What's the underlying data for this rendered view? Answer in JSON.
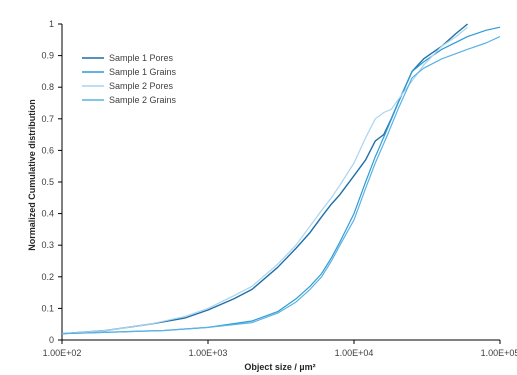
{
  "chart_data": {
    "type": "line",
    "xlabel": "Object size / µm²",
    "ylabel": "Normalized Cumulative distribution",
    "x_scale": "log",
    "xlim": [
      100,
      100000
    ],
    "ylim": [
      0,
      1
    ],
    "x_ticks": [
      100,
      1000,
      10000,
      100000
    ],
    "x_tick_labels": [
      "1.00E+02",
      "1.00E+03",
      "1.00E+04",
      "1.00E+05"
    ],
    "y_ticks": [
      0,
      0.1,
      0.2,
      0.3,
      0.4,
      0.5,
      0.6,
      0.7,
      0.8,
      0.9,
      1
    ],
    "y_tick_labels": [
      "0",
      "0.1",
      "0.2",
      "0.3",
      "0.4",
      "0.5",
      "0.6",
      "0.7",
      "0.8",
      "0.9",
      "1"
    ],
    "grid": false,
    "legend_position": "top-left",
    "series": [
      {
        "name": "Sample 1 Pores",
        "color": "#1f6fa8",
        "width": 1.4,
        "points": [
          [
            100,
            0.02
          ],
          [
            200,
            0.03
          ],
          [
            400,
            0.05
          ],
          [
            700,
            0.07
          ],
          [
            1000,
            0.095
          ],
          [
            1500,
            0.13
          ],
          [
            2000,
            0.16
          ],
          [
            3000,
            0.23
          ],
          [
            4000,
            0.29
          ],
          [
            5000,
            0.34
          ],
          [
            6000,
            0.39
          ],
          [
            7000,
            0.43
          ],
          [
            8000,
            0.46
          ],
          [
            10000,
            0.52
          ],
          [
            12000,
            0.57
          ],
          [
            14000,
            0.63
          ],
          [
            16000,
            0.65
          ],
          [
            18000,
            0.7
          ],
          [
            20000,
            0.75
          ],
          [
            25000,
            0.85
          ],
          [
            30000,
            0.89
          ],
          [
            40000,
            0.93
          ],
          [
            50000,
            0.97
          ],
          [
            60000,
            1.0
          ]
        ]
      },
      {
        "name": "Sample 1 Grains",
        "color": "#2e9bd6",
        "width": 1.2,
        "points": [
          [
            100,
            0.02
          ],
          [
            500,
            0.03
          ],
          [
            1000,
            0.04
          ],
          [
            2000,
            0.06
          ],
          [
            3000,
            0.09
          ],
          [
            4000,
            0.13
          ],
          [
            5000,
            0.17
          ],
          [
            6000,
            0.21
          ],
          [
            7000,
            0.26
          ],
          [
            8000,
            0.31
          ],
          [
            10000,
            0.4
          ],
          [
            12000,
            0.5
          ],
          [
            14000,
            0.58
          ],
          [
            17000,
            0.67
          ],
          [
            20000,
            0.75
          ],
          [
            25000,
            0.85
          ],
          [
            30000,
            0.88
          ],
          [
            40000,
            0.92
          ],
          [
            60000,
            0.96
          ],
          [
            80000,
            0.98
          ],
          [
            100000,
            0.99
          ]
        ]
      },
      {
        "name": "Sample 2 Pores",
        "color": "#a9d4ee",
        "width": 1.2,
        "points": [
          [
            100,
            0.02
          ],
          [
            200,
            0.03
          ],
          [
            400,
            0.05
          ],
          [
            700,
            0.075
          ],
          [
            1000,
            0.1
          ],
          [
            1500,
            0.14
          ],
          [
            2000,
            0.17
          ],
          [
            3000,
            0.24
          ],
          [
            4000,
            0.3
          ],
          [
            5000,
            0.36
          ],
          [
            6000,
            0.41
          ],
          [
            7000,
            0.45
          ],
          [
            8000,
            0.49
          ],
          [
            10000,
            0.56
          ],
          [
            12000,
            0.64
          ],
          [
            14000,
            0.7
          ],
          [
            16000,
            0.72
          ],
          [
            18000,
            0.73
          ],
          [
            20000,
            0.76
          ],
          [
            25000,
            0.82
          ],
          [
            30000,
            0.87
          ],
          [
            40000,
            0.93
          ],
          [
            50000,
            0.96
          ],
          [
            60000,
            0.99
          ]
        ]
      },
      {
        "name": "Sample 2 Grains",
        "color": "#5bb2e3",
        "width": 1.2,
        "points": [
          [
            100,
            0.02
          ],
          [
            500,
            0.03
          ],
          [
            1000,
            0.04
          ],
          [
            2000,
            0.055
          ],
          [
            3000,
            0.085
          ],
          [
            4000,
            0.12
          ],
          [
            5000,
            0.16
          ],
          [
            6000,
            0.2
          ],
          [
            7000,
            0.25
          ],
          [
            8000,
            0.3
          ],
          [
            10000,
            0.38
          ],
          [
            12000,
            0.48
          ],
          [
            14000,
            0.56
          ],
          [
            17000,
            0.65
          ],
          [
            20000,
            0.73
          ],
          [
            25000,
            0.83
          ],
          [
            30000,
            0.86
          ],
          [
            40000,
            0.89
          ],
          [
            60000,
            0.92
          ],
          [
            80000,
            0.94
          ],
          [
            100000,
            0.96
          ]
        ]
      }
    ]
  }
}
